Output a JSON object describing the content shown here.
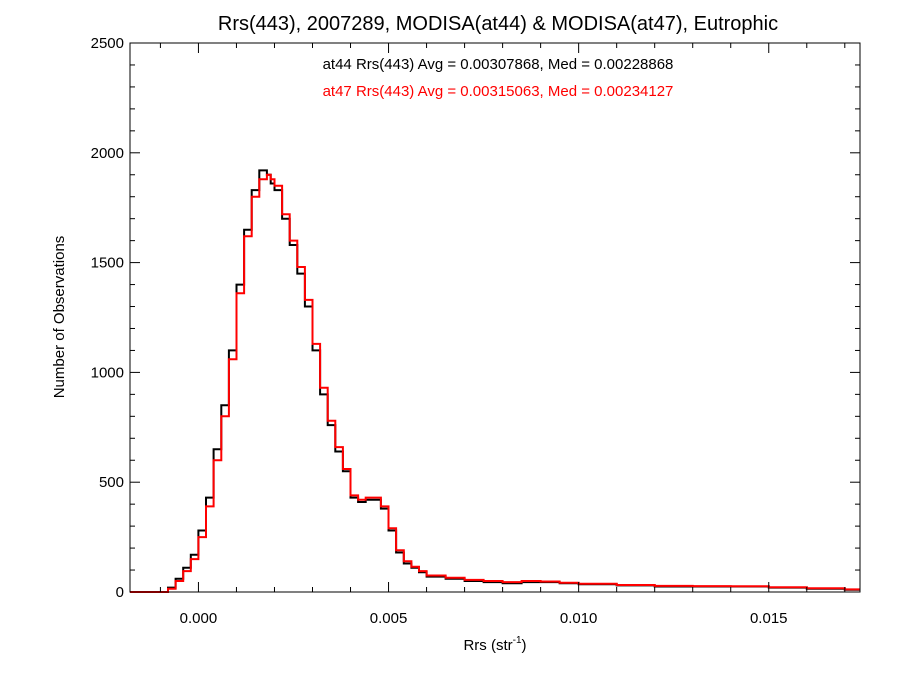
{
  "chart_data": {
    "type": "line",
    "title": "Rrs(443), 2007289, MODISA(at44) & MODISA(at47), Eutrophic",
    "xlabel": "Rrs (str",
    "xlabel_sup": "-1",
    "xlabel_close": ")",
    "ylabel": "Number of Observations",
    "xlim": [
      -0.0018,
      0.0174
    ],
    "ylim": [
      0,
      2500
    ],
    "xticks": [
      0.0,
      0.005,
      0.01,
      0.015
    ],
    "xtick_labels": [
      "0.000",
      "0.005",
      "0.010",
      "0.015"
    ],
    "yticks": [
      0,
      500,
      1000,
      1500,
      2000,
      2500
    ],
    "ytick_labels": [
      "0",
      "500",
      "1000",
      "1500",
      "2000",
      "2500"
    ],
    "grid": false,
    "annotations": [
      {
        "text": "at44 Rrs(443) Avg = 0.00307868, Med = 0.00228868",
        "color": "#000000"
      },
      {
        "text": "at47 Rrs(443) Avg = 0.00315063, Med = 0.00234127",
        "color": "#ff0000"
      }
    ],
    "series": [
      {
        "color": "#000000",
        "x": [
          -0.0018,
          -0.001,
          -0.0008,
          -0.0006,
          -0.0004,
          -0.0002,
          0.0,
          0.0002,
          0.0004,
          0.0006,
          0.0008,
          0.001,
          0.0012,
          0.0014,
          0.0016,
          0.0018,
          0.0019,
          0.002,
          0.0022,
          0.0024,
          0.0026,
          0.0028,
          0.003,
          0.0032,
          0.0034,
          0.0036,
          0.0038,
          0.004,
          0.0042,
          0.0044,
          0.0046,
          0.0048,
          0.005,
          0.0052,
          0.0054,
          0.0056,
          0.0058,
          0.006,
          0.0065,
          0.007,
          0.0075,
          0.008,
          0.0085,
          0.009,
          0.0095,
          0.01,
          0.011,
          0.012,
          0.013,
          0.014,
          0.015,
          0.016,
          0.017,
          0.0174
        ],
        "y": [
          0,
          0,
          20,
          60,
          110,
          170,
          280,
          430,
          650,
          850,
          1100,
          1400,
          1650,
          1830,
          1920,
          1900,
          1860,
          1830,
          1700,
          1580,
          1450,
          1300,
          1100,
          900,
          760,
          640,
          550,
          430,
          410,
          420,
          420,
          380,
          280,
          180,
          130,
          110,
          90,
          70,
          60,
          50,
          45,
          40,
          45,
          45,
          40,
          35,
          30,
          25,
          25,
          25,
          20,
          15,
          10,
          10
        ]
      },
      {
        "color": "#ff0000",
        "x": [
          -0.0018,
          -0.001,
          -0.0008,
          -0.0006,
          -0.0004,
          -0.0002,
          0.0,
          0.0002,
          0.0004,
          0.0006,
          0.0008,
          0.001,
          0.0012,
          0.0014,
          0.0016,
          0.0018,
          0.0019,
          0.002,
          0.0022,
          0.0024,
          0.0026,
          0.0028,
          0.003,
          0.0032,
          0.0034,
          0.0036,
          0.0038,
          0.004,
          0.0042,
          0.0044,
          0.0046,
          0.0048,
          0.005,
          0.0052,
          0.0054,
          0.0056,
          0.0058,
          0.006,
          0.0065,
          0.007,
          0.0075,
          0.008,
          0.0085,
          0.009,
          0.0095,
          0.01,
          0.011,
          0.012,
          0.013,
          0.014,
          0.015,
          0.016,
          0.017,
          0.0174
        ],
        "y": [
          0,
          0,
          15,
          50,
          95,
          150,
          250,
          390,
          600,
          800,
          1060,
          1360,
          1620,
          1800,
          1880,
          1900,
          1880,
          1850,
          1720,
          1600,
          1480,
          1330,
          1130,
          930,
          780,
          660,
          560,
          440,
          420,
          430,
          430,
          390,
          290,
          190,
          140,
          115,
          95,
          75,
          65,
          55,
          50,
          45,
          50,
          48,
          42,
          38,
          32,
          28,
          27,
          26,
          22,
          17,
          12,
          12
        ]
      }
    ]
  }
}
